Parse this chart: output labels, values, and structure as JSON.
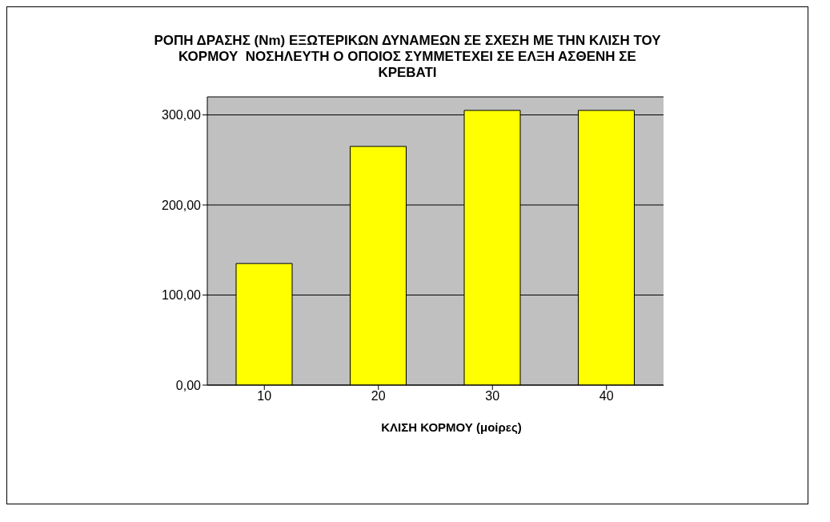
{
  "chart_data": {
    "type": "bar",
    "title": "ΡΟΠΗ ΔΡΑΣΗΣ (Nm) ΕΞΩΤΕΡΙΚΩΝ ΔΥΝΑΜΕΩΝ ΣΕ ΣΧΕΣΗ ΜΕ ΤΗΝ ΚΛΙΣΗ ΤΟΥ ΚΟΡΜΟΥ  ΝΟΣΗΛΕΥΤΗ Ο ΟΠΟΙΟΣ ΣΥΜΜΕΤΕΧΕΙ ΣΕ ΕΛΞΗ ΑΣΘΕΝΗ ΣΕ ΚΡΕΒΑΤΙ",
    "xlabel": "ΚΛΙΣΗ ΚΟΡΜΟΥ (μοίρες)",
    "categories": [
      "10",
      "20",
      "30",
      "40"
    ],
    "values": [
      135,
      265,
      305,
      305
    ],
    "color": "#ffff00",
    "ylim": [
      0,
      320
    ],
    "yticks": [
      {
        "value": 0,
        "label": "0,00"
      },
      {
        "value": 100,
        "label": "100,00"
      },
      {
        "value": 200,
        "label": "200,00"
      },
      {
        "value": 300,
        "label": "300,00"
      }
    ],
    "grid": "y"
  }
}
